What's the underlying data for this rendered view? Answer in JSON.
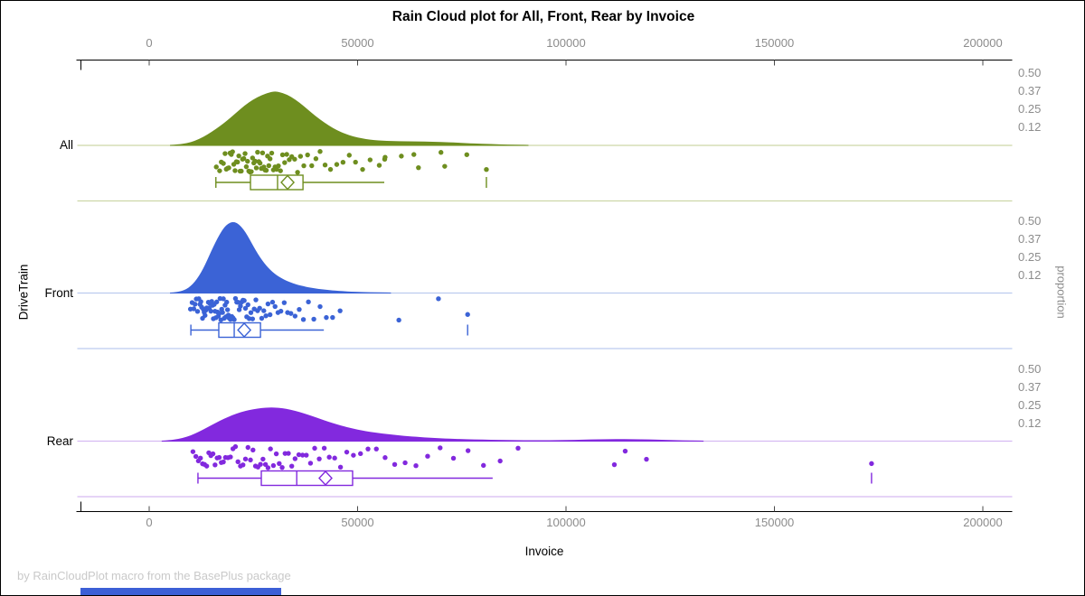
{
  "title": "Rain Cloud plot for All, Front, Rear by Invoice",
  "footer": "by RainCloudPlot macro from the BasePlus package",
  "footer_bar_color": "#3c5fd6",
  "x_axis": {
    "label": "Invoice",
    "min": 0,
    "max": 200000,
    "tick_values": [
      0,
      50000,
      100000,
      150000,
      200000
    ],
    "tick_labels": [
      "0",
      "50000",
      "100000",
      "150000",
      "200000"
    ]
  },
  "y_axis_left": {
    "label": "DriveTrain",
    "categories": [
      "All",
      "Front",
      "Rear"
    ]
  },
  "y_axis_right": {
    "label": "proportion",
    "tick_labels": [
      "0.50",
      "0.37",
      "0.25",
      "0.12"
    ],
    "tick_values": [
      0.5,
      0.375,
      0.25,
      0.125
    ]
  },
  "colors": {
    "axis_line": "#000000",
    "tick_mark": "#4a4a4a",
    "tick_text": "#8c8c8c",
    "all": "#6e8e1f",
    "all_pale": "#cdd7a8",
    "front": "#3b63d6",
    "front_pale": "#bccbef",
    "rear": "#8229de",
    "rear_pale": "#d6baf2"
  },
  "chart_data": {
    "type": "raincloud",
    "note": "density x values and point/box values are Invoice in thousands; density y is proportion",
    "groups": [
      {
        "name": "All",
        "color": "#6e8e1f",
        "pale": "#cdd7a8",
        "density": [
          [
            5,
            0
          ],
          [
            7,
            0.004
          ],
          [
            9,
            0.012
          ],
          [
            11,
            0.028
          ],
          [
            13,
            0.055
          ],
          [
            15,
            0.09
          ],
          [
            17,
            0.13
          ],
          [
            19,
            0.175
          ],
          [
            21,
            0.225
          ],
          [
            23,
            0.275
          ],
          [
            25,
            0.315
          ],
          [
            27,
            0.345
          ],
          [
            29,
            0.365
          ],
          [
            30,
            0.37
          ],
          [
            31,
            0.368
          ],
          [
            33,
            0.35
          ],
          [
            35,
            0.315
          ],
          [
            37,
            0.27
          ],
          [
            39,
            0.22
          ],
          [
            41,
            0.175
          ],
          [
            43,
            0.135
          ],
          [
            45,
            0.102
          ],
          [
            47,
            0.077
          ],
          [
            49,
            0.058
          ],
          [
            51,
            0.045
          ],
          [
            53,
            0.037
          ],
          [
            55,
            0.031
          ],
          [
            57,
            0.028
          ],
          [
            59,
            0.026
          ],
          [
            61,
            0.025
          ],
          [
            63,
            0.025
          ],
          [
            65,
            0.024
          ],
          [
            67,
            0.023
          ],
          [
            69,
            0.021
          ],
          [
            71,
            0.019
          ],
          [
            73,
            0.017
          ],
          [
            75,
            0.014
          ],
          [
            77,
            0.011
          ],
          [
            79,
            0.009
          ],
          [
            81,
            0.007
          ],
          [
            83,
            0.005
          ],
          [
            85,
            0.003
          ],
          [
            87,
            0.002
          ],
          [
            89,
            0.001
          ],
          [
            91,
            0
          ]
        ],
        "points_k": [
          16.1,
          16.9,
          17.3,
          17.8,
          18.2,
          18.5,
          18.8,
          19.1,
          19.4,
          19.7,
          20.0,
          20.3,
          20.6,
          20.9,
          21.2,
          21.5,
          21.8,
          22.1,
          22.4,
          22.7,
          23.0,
          23.3,
          23.6,
          23.9,
          24.2,
          24.5,
          24.8,
          25.1,
          25.4,
          25.7,
          26.0,
          26.3,
          26.6,
          26.9,
          27.2,
          27.5,
          27.8,
          28.1,
          28.4,
          28.7,
          29.0,
          29.4,
          29.8,
          30.2,
          30.6,
          31.0,
          31.5,
          32.0,
          32.5,
          33.0,
          33.6,
          34.2,
          34.9,
          35.6,
          36.3,
          37.1,
          38.0,
          39.0,
          40.0,
          41.0,
          42.2,
          43.5,
          45.0,
          46.5,
          48.0,
          49.5,
          51.2,
          53.0,
          55.2,
          56.5,
          56.6,
          60.5,
          63.5,
          64.6,
          70.0,
          70.9,
          76.2,
          80.9
        ],
        "box": {
          "low": 16.0,
          "q1": 24.3,
          "median": 30.8,
          "mean": 33.2,
          "q3": 36.9,
          "high": 56.4,
          "far_outlier": 80.9
        }
      },
      {
        "name": "Front",
        "color": "#3b63d6",
        "pale": "#bccbef",
        "density": [
          [
            5,
            0
          ],
          [
            6,
            0.002
          ],
          [
            7,
            0.006
          ],
          [
            8,
            0.013
          ],
          [
            9,
            0.025
          ],
          [
            10,
            0.045
          ],
          [
            11,
            0.075
          ],
          [
            12,
            0.115
          ],
          [
            13,
            0.165
          ],
          [
            14,
            0.225
          ],
          [
            15,
            0.29
          ],
          [
            16,
            0.35
          ],
          [
            17,
            0.405
          ],
          [
            18,
            0.45
          ],
          [
            19,
            0.478
          ],
          [
            20,
            0.49
          ],
          [
            21,
            0.483
          ],
          [
            22,
            0.458
          ],
          [
            23,
            0.42
          ],
          [
            24,
            0.37
          ],
          [
            25,
            0.318
          ],
          [
            26,
            0.268
          ],
          [
            27,
            0.225
          ],
          [
            28,
            0.188
          ],
          [
            29,
            0.157
          ],
          [
            30,
            0.132
          ],
          [
            31,
            0.112
          ],
          [
            32,
            0.095
          ],
          [
            33,
            0.081
          ],
          [
            34,
            0.069
          ],
          [
            35,
            0.059
          ],
          [
            36,
            0.051
          ],
          [
            37,
            0.044
          ],
          [
            38,
            0.038
          ],
          [
            39,
            0.033
          ],
          [
            40,
            0.028
          ],
          [
            41,
            0.024
          ],
          [
            42,
            0.021
          ],
          [
            43,
            0.018
          ],
          [
            44,
            0.015
          ],
          [
            45,
            0.013
          ],
          [
            46,
            0.011
          ],
          [
            47,
            0.009
          ],
          [
            48,
            0.007
          ],
          [
            49,
            0.006
          ],
          [
            50,
            0.005
          ],
          [
            52,
            0.003
          ],
          [
            54,
            0.002
          ],
          [
            56,
            0.001
          ],
          [
            58,
            0
          ]
        ],
        "points_k": [
          9.9,
          10.3,
          10.7,
          11.0,
          11.3,
          11.6,
          11.9,
          12.2,
          12.4,
          12.6,
          12.8,
          13.0,
          13.2,
          13.4,
          13.6,
          13.8,
          14.0,
          14.2,
          14.4,
          14.6,
          14.8,
          15.0,
          15.2,
          15.4,
          15.6,
          15.8,
          16.0,
          16.2,
          16.4,
          16.6,
          16.8,
          17.0,
          17.2,
          17.4,
          17.6,
          17.8,
          18.0,
          18.2,
          18.4,
          18.6,
          18.8,
          19.0,
          19.2,
          19.5,
          19.8,
          20.1,
          20.4,
          20.7,
          21.0,
          21.3,
          21.6,
          21.9,
          22.2,
          22.5,
          22.8,
          23.1,
          23.4,
          23.7,
          24.0,
          24.4,
          24.8,
          25.2,
          25.6,
          26.0,
          26.5,
          27.0,
          27.5,
          28.0,
          28.5,
          29.0,
          29.6,
          30.2,
          30.9,
          31.6,
          32.4,
          33.2,
          34.0,
          35.0,
          36.0,
          37.0,
          38.2,
          39.5,
          41.0,
          42.5,
          44.0,
          45.8,
          59.9,
          69.4,
          76.4
        ],
        "box": {
          "low": 10.0,
          "q1": 16.7,
          "median": 20.4,
          "mean": 22.8,
          "q3": 26.7,
          "high": 41.9,
          "far_outlier": 76.4
        }
      },
      {
        "name": "Rear",
        "color": "#8229de",
        "pale": "#d6baf2",
        "density": [
          [
            3,
            0
          ],
          [
            5,
            0.004
          ],
          [
            7,
            0.012
          ],
          [
            9,
            0.026
          ],
          [
            11,
            0.048
          ],
          [
            13,
            0.077
          ],
          [
            15,
            0.108
          ],
          [
            17,
            0.138
          ],
          [
            19,
            0.165
          ],
          [
            21,
            0.188
          ],
          [
            23,
            0.206
          ],
          [
            25,
            0.218
          ],
          [
            27,
            0.226
          ],
          [
            29,
            0.23
          ],
          [
            31,
            0.228
          ],
          [
            33,
            0.22
          ],
          [
            35,
            0.207
          ],
          [
            37,
            0.19
          ],
          [
            39,
            0.171
          ],
          [
            41,
            0.151
          ],
          [
            43,
            0.131
          ],
          [
            45,
            0.113
          ],
          [
            47,
            0.097
          ],
          [
            49,
            0.083
          ],
          [
            51,
            0.071
          ],
          [
            53,
            0.061
          ],
          [
            55,
            0.053
          ],
          [
            57,
            0.046
          ],
          [
            59,
            0.04
          ],
          [
            61,
            0.034
          ],
          [
            63,
            0.029
          ],
          [
            65,
            0.025
          ],
          [
            67,
            0.021
          ],
          [
            69,
            0.018
          ],
          [
            71,
            0.015
          ],
          [
            73,
            0.013
          ],
          [
            75,
            0.011
          ],
          [
            77,
            0.009
          ],
          [
            79,
            0.008
          ],
          [
            81,
            0.007
          ],
          [
            83,
            0.006
          ],
          [
            85,
            0.005
          ],
          [
            87,
            0.004
          ],
          [
            89,
            0.0035
          ],
          [
            91,
            0.003
          ],
          [
            93,
            0.003
          ],
          [
            95,
            0.003
          ],
          [
            97,
            0.0035
          ],
          [
            99,
            0.004
          ],
          [
            101,
            0.005
          ],
          [
            103,
            0.006
          ],
          [
            105,
            0.0075
          ],
          [
            107,
            0.009
          ],
          [
            109,
            0.01
          ],
          [
            111,
            0.0108
          ],
          [
            113,
            0.011
          ],
          [
            115,
            0.0108
          ],
          [
            117,
            0.01
          ],
          [
            119,
            0.009
          ],
          [
            121,
            0.0075
          ],
          [
            123,
            0.006
          ],
          [
            125,
            0.0045
          ],
          [
            127,
            0.003
          ],
          [
            129,
            0.002
          ],
          [
            131,
            0.001
          ],
          [
            133,
            0
          ]
        ],
        "points_k": [
          10.5,
          11.2,
          11.8,
          12.3,
          12.8,
          13.3,
          13.8,
          14.3,
          14.8,
          15.3,
          15.8,
          16.3,
          16.8,
          17.3,
          17.8,
          18.3,
          18.9,
          19.5,
          20.1,
          20.7,
          21.3,
          21.9,
          22.5,
          23.1,
          23.7,
          24.3,
          24.9,
          25.5,
          26.1,
          26.7,
          27.3,
          27.9,
          28.5,
          29.1,
          29.8,
          30.5,
          31.2,
          31.9,
          32.6,
          33.4,
          34.2,
          35.0,
          35.9,
          36.8,
          37.7,
          38.7,
          39.7,
          40.8,
          42.0,
          43.2,
          44.5,
          45.9,
          47.4,
          49.0,
          50.7,
          52.5,
          54.5,
          56.6,
          58.9,
          61.4,
          64.0,
          66.8,
          69.8,
          73.0,
          76.5,
          80.2,
          84.2,
          88.5,
          111.6,
          114.2,
          119.3,
          173.3
        ],
        "box": {
          "low": 11.7,
          "q1": 26.9,
          "median": 35.4,
          "mean": 42.3,
          "q3": 48.8,
          "high": 82.4,
          "far_outlier": 173.3
        }
      }
    ]
  }
}
